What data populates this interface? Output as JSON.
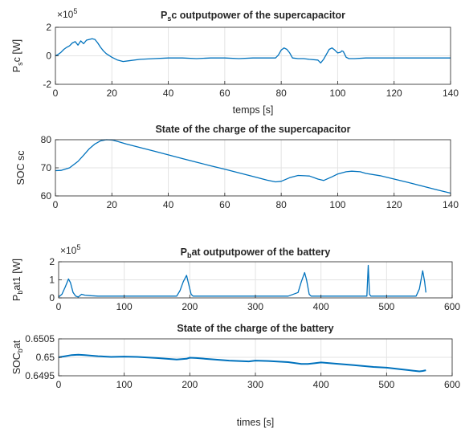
{
  "chart_data": [
    {
      "type": "line",
      "title": "P",
      "title_sub": "s",
      "title_rest": "c outputpower of the supercapacitor",
      "ylabel": "P",
      "ylabel_sub": "s",
      "ylabel_rest": "c  [W]",
      "xlabel": "temps [s]",
      "y_exponent_base": "×10",
      "y_exponent": "5",
      "xlim": [
        0,
        140
      ],
      "ylim": [
        -2,
        2
      ],
      "xticks": [
        "0",
        "20",
        "40",
        "60",
        "80",
        "100",
        "120",
        "140"
      ],
      "yticks": [
        "-2",
        "0",
        "2"
      ],
      "grid": true,
      "color": "#0072bd",
      "series": [
        {
          "x": [
            0,
            1,
            2,
            3,
            4,
            5,
            6,
            7,
            8,
            9,
            10,
            11,
            12,
            13,
            14,
            15,
            16,
            17,
            18,
            20,
            22,
            24,
            26,
            30,
            35,
            40,
            45,
            50,
            55,
            60,
            65,
            70,
            75,
            78,
            79,
            80,
            81,
            82,
            83,
            84,
            86,
            88,
            90,
            93,
            94,
            95,
            96,
            97,
            98,
            99,
            100,
            101,
            101.5,
            102,
            103,
            104,
            106,
            110,
            120,
            130,
            140
          ],
          "y": [
            0,
            0.1,
            0.25,
            0.45,
            0.6,
            0.7,
            0.9,
            1.0,
            0.75,
            1.05,
            0.85,
            1.1,
            1.15,
            1.2,
            1.15,
            0.9,
            0.6,
            0.35,
            0.15,
            -0.1,
            -0.3,
            -0.4,
            -0.35,
            -0.25,
            -0.2,
            -0.15,
            -0.15,
            -0.2,
            -0.15,
            -0.15,
            -0.2,
            -0.15,
            -0.15,
            -0.15,
            0.05,
            0.4,
            0.55,
            0.45,
            0.2,
            -0.15,
            -0.2,
            -0.2,
            -0.25,
            -0.3,
            -0.5,
            -0.25,
            0.1,
            0.45,
            0.55,
            0.4,
            0.2,
            0.25,
            0.35,
            0.3,
            -0.1,
            -0.2,
            -0.2,
            -0.15,
            -0.15,
            -0.15,
            -0.15
          ]
        }
      ]
    },
    {
      "type": "line",
      "title": "State of the charge of the supercapacitor",
      "ylabel": "SOC sc",
      "xlabel": "",
      "xlim": [
        0,
        140
      ],
      "ylim": [
        60,
        80
      ],
      "xticks": [
        "0",
        "20",
        "40",
        "60",
        "80",
        "100",
        "120",
        "140"
      ],
      "yticks": [
        "60",
        "70",
        "80"
      ],
      "grid": true,
      "color": "#0072bd",
      "series": [
        {
          "x": [
            0,
            2,
            5,
            8,
            10,
            12,
            14,
            16,
            18,
            20,
            22,
            25,
            30,
            35,
            40,
            45,
            50,
            55,
            60,
            65,
            70,
            75,
            78,
            80,
            83,
            86,
            90,
            93,
            95,
            98,
            100,
            103,
            105,
            108,
            110,
            115,
            120,
            125,
            130,
            135,
            140
          ],
          "y": [
            69,
            69.1,
            70,
            72.3,
            74.5,
            76.8,
            78.5,
            79.6,
            80,
            79.9,
            79.4,
            78.5,
            77.2,
            75.9,
            74.6,
            73.3,
            72,
            70.7,
            69.5,
            68.2,
            66.9,
            65.6,
            65,
            65.2,
            66.5,
            67.3,
            67.1,
            66,
            65.5,
            66.8,
            67.8,
            68.6,
            68.8,
            68.6,
            68,
            67.2,
            66,
            64.8,
            63.5,
            62.2,
            61
          ]
        }
      ]
    },
    {
      "type": "line",
      "title": "P",
      "title_sub": "b",
      "title_rest": "at outputpower of the battery",
      "ylabel": "P",
      "ylabel_sub": "b",
      "ylabel_rest": "at1  [W]",
      "xlabel": "",
      "y_exponent_base": "×10",
      "y_exponent": "5",
      "xlim": [
        0,
        600
      ],
      "ylim": [
        0,
        2
      ],
      "xticks": [
        "0",
        "100",
        "200",
        "300",
        "400",
        "500",
        "600"
      ],
      "yticks": [
        "0",
        "1",
        "2"
      ],
      "grid": true,
      "color": "#0072bd",
      "series": [
        {
          "x": [
            0,
            5,
            10,
            15,
            18,
            22,
            26,
            30,
            35,
            40,
            50,
            60,
            80,
            100,
            120,
            150,
            180,
            185,
            190,
            195,
            198,
            202,
            205,
            210,
            250,
            300,
            350,
            365,
            370,
            375,
            378,
            382,
            385,
            390,
            420,
            460,
            470,
            472,
            474,
            476,
            480,
            500,
            520,
            545,
            550,
            555,
            558,
            560
          ],
          "y": [
            0.05,
            0.2,
            0.6,
            1.05,
            0.85,
            0.3,
            0.1,
            0.05,
            0.2,
            0.15,
            0.12,
            0.1,
            0.1,
            0.1,
            0.1,
            0.1,
            0.1,
            0.4,
            0.9,
            1.25,
            0.8,
            0.2,
            0.1,
            0.1,
            0.1,
            0.1,
            0.1,
            0.3,
            0.9,
            1.4,
            1.0,
            0.2,
            0.1,
            0.1,
            0.1,
            0.1,
            0.1,
            1.8,
            0.2,
            0.1,
            0.1,
            0.1,
            0.1,
            0.1,
            0.5,
            1.5,
            0.9,
            0.3
          ]
        }
      ]
    },
    {
      "type": "line",
      "title": "State of the charge of the battery",
      "ylabel": "SOC",
      "ylabel_sub": "b",
      "ylabel_rest": "at",
      "xlabel": "times [s]",
      "xlim": [
        0,
        600
      ],
      "ylim": [
        0.6495,
        0.6505
      ],
      "xticks": [
        "0",
        "100",
        "200",
        "300",
        "400",
        "500",
        "600"
      ],
      "yticks": [
        "0.6495",
        "0.65",
        "0.6505"
      ],
      "grid": true,
      "color": "#0072bd",
      "series": [
        {
          "x": [
            0,
            10,
            20,
            30,
            40,
            60,
            80,
            100,
            120,
            150,
            180,
            195,
            200,
            210,
            230,
            260,
            290,
            300,
            320,
            350,
            370,
            380,
            390,
            400,
            420,
            450,
            480,
            500,
            520,
            540,
            550,
            555,
            560
          ],
          "y": [
            0.65,
            0.65003,
            0.65006,
            0.65007,
            0.65006,
            0.65003,
            0.65001,
            0.65002,
            0.65001,
            0.64998,
            0.64994,
            0.64996,
            0.64999,
            0.64998,
            0.64995,
            0.64991,
            0.64989,
            0.64991,
            0.6499,
            0.64987,
            0.64982,
            0.64982,
            0.64984,
            0.64986,
            0.64983,
            0.64979,
            0.64974,
            0.64972,
            0.64968,
            0.64964,
            0.64962,
            0.64963,
            0.64965
          ]
        }
      ]
    }
  ]
}
